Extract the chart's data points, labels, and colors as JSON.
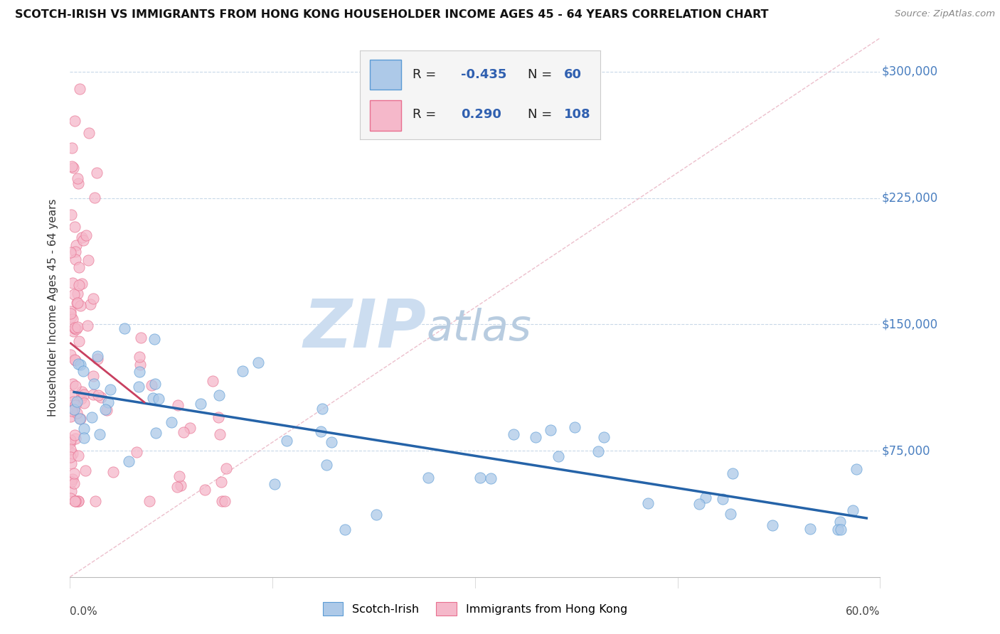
{
  "title": "SCOTCH-IRISH VS IMMIGRANTS FROM HONG KONG HOUSEHOLDER INCOME AGES 45 - 64 YEARS CORRELATION CHART",
  "source": "Source: ZipAtlas.com",
  "ylabel": "Householder Income Ages 45 - 64 years",
  "y_ticks": [
    75000,
    150000,
    225000,
    300000
  ],
  "y_tick_labels": [
    "$75,000",
    "$150,000",
    "$225,000",
    "$300,000"
  ],
  "xlim": [
    0.0,
    60.0
  ],
  "ylim": [
    0,
    320000
  ],
  "blue_color": "#adc9e8",
  "pink_color": "#f5b8ca",
  "blue_edge_color": "#5b9bd5",
  "pink_edge_color": "#e87090",
  "blue_line_color": "#2563a8",
  "pink_line_color": "#c84060",
  "diag_color": "#e8b0c0",
  "grid_color": "#c8d8e8",
  "watermark_zip_color": "#ccddf0",
  "watermark_atlas_color": "#b8cce0",
  "legend_r_color": "#3060b0",
  "legend_n_color": "#3060b0"
}
